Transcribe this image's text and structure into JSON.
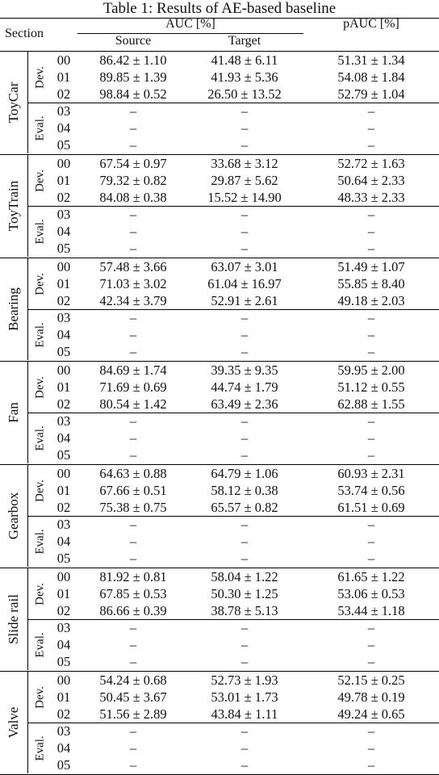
{
  "table": {
    "caption": "Table 1: Results of AE-based baseline",
    "header": {
      "section": "Section",
      "auc": "AUC [%]",
      "source": "Source",
      "target": "Target",
      "pauc": "pAUC [%]"
    },
    "subgroups": {
      "dev": "Dev.",
      "eval": "Eval."
    },
    "sections": [
      {
        "name": "ToyCar",
        "rows": [
          {
            "id": "00",
            "source": "86.42 ± 1.10",
            "target": "41.48 ± 6.11",
            "pauc": "51.31 ± 1.34"
          },
          {
            "id": "01",
            "source": "89.85 ± 1.39",
            "target": "41.93 ± 5.36",
            "pauc": "54.08 ± 1.84"
          },
          {
            "id": "02",
            "source": "98.84 ± 0.52",
            "target": "26.50 ± 13.52",
            "pauc": "52.79 ± 1.04"
          },
          {
            "id": "03",
            "source": "–",
            "target": "–",
            "pauc": "–"
          },
          {
            "id": "04",
            "source": "–",
            "target": "–",
            "pauc": "–"
          },
          {
            "id": "05",
            "source": "–",
            "target": "–",
            "pauc": "–"
          }
        ]
      },
      {
        "name": "ToyTrain",
        "rows": [
          {
            "id": "00",
            "source": "67.54 ± 0.97",
            "target": "33.68 ± 3.12",
            "pauc": "52.72 ± 1.63"
          },
          {
            "id": "01",
            "source": "79.32 ± 0.82",
            "target": "29.87 ± 5.62",
            "pauc": "50.64 ± 2.33"
          },
          {
            "id": "02",
            "source": "84.08 ± 0.38",
            "target": "15.52 ± 14.90",
            "pauc": "48.33 ± 2.33"
          },
          {
            "id": "03",
            "source": "–",
            "target": "–",
            "pauc": "–"
          },
          {
            "id": "04",
            "source": "–",
            "target": "–",
            "pauc": "–"
          },
          {
            "id": "05",
            "source": "–",
            "target": "–",
            "pauc": "–"
          }
        ]
      },
      {
        "name": "Bearing",
        "rows": [
          {
            "id": "00",
            "source": "57.48 ± 3.66",
            "target": "63.07 ± 3.01",
            "pauc": "51.49 ± 1.07"
          },
          {
            "id": "01",
            "source": "71.03 ± 3.02",
            "target": "61.04 ± 16.97",
            "pauc": "55.85 ± 8.40"
          },
          {
            "id": "02",
            "source": "42.34 ± 3.79",
            "target": "52.91 ± 2.61",
            "pauc": "49.18 ± 2.03"
          },
          {
            "id": "03",
            "source": "–",
            "target": "–",
            "pauc": "–"
          },
          {
            "id": "04",
            "source": "–",
            "target": "–",
            "pauc": "–"
          },
          {
            "id": "05",
            "source": "–",
            "target": "–",
            "pauc": "–"
          }
        ]
      },
      {
        "name": "Fan",
        "rows": [
          {
            "id": "00",
            "source": "84.69 ± 1.74",
            "target": "39.35 ± 9.35",
            "pauc": "59.95 ± 2.00"
          },
          {
            "id": "01",
            "source": "71.69 ± 0.69",
            "target": "44.74 ± 1.79",
            "pauc": "51.12 ± 0.55"
          },
          {
            "id": "02",
            "source": "80.54 ± 1.42",
            "target": "63.49 ± 2.36",
            "pauc": "62.88 ± 1.55"
          },
          {
            "id": "03",
            "source": "–",
            "target": "–",
            "pauc": "–"
          },
          {
            "id": "04",
            "source": "–",
            "target": "–",
            "pauc": "–"
          },
          {
            "id": "05",
            "source": "–",
            "target": "–",
            "pauc": "–"
          }
        ]
      },
      {
        "name": "Gearbox",
        "rows": [
          {
            "id": "00",
            "source": "64.63 ± 0.88",
            "target": "64.79 ± 1.06",
            "pauc": "60.93 ± 2.31"
          },
          {
            "id": "01",
            "source": "67.66 ± 0.51",
            "target": "58.12 ± 0.38",
            "pauc": "53.74 ± 0.56"
          },
          {
            "id": "02",
            "source": "75.38 ± 0.75",
            "target": "65.57 ± 0.82",
            "pauc": "61.51 ± 0.69"
          },
          {
            "id": "03",
            "source": "–",
            "target": "–",
            "pauc": "–"
          },
          {
            "id": "04",
            "source": "–",
            "target": "–",
            "pauc": "–"
          },
          {
            "id": "05",
            "source": "–",
            "target": "–",
            "pauc": "–"
          }
        ]
      },
      {
        "name": "Slide rail",
        "rows": [
          {
            "id": "00",
            "source": "81.92 ± 0.81",
            "target": "58.04 ± 1.22",
            "pauc": "61.65 ± 1.22"
          },
          {
            "id": "01",
            "source": "67.85 ± 0.53",
            "target": "50.30 ± 1.25",
            "pauc": "53.06 ± 0.53"
          },
          {
            "id": "02",
            "source": "86.66 ± 0.39",
            "target": "38.78 ± 5.13",
            "pauc": "53.44 ± 1.18"
          },
          {
            "id": "03",
            "source": "–",
            "target": "–",
            "pauc": "–"
          },
          {
            "id": "04",
            "source": "–",
            "target": "–",
            "pauc": "–"
          },
          {
            "id": "05",
            "source": "–",
            "target": "–",
            "pauc": "–"
          }
        ]
      },
      {
        "name": "Valve",
        "rows": [
          {
            "id": "00",
            "source": "54.24 ± 0.68",
            "target": "52.73 ± 1.93",
            "pauc": "52.15 ± 0.25"
          },
          {
            "id": "01",
            "source": "50.45 ± 3.67",
            "target": "53.01 ± 1.73",
            "pauc": "49.78 ± 0.19"
          },
          {
            "id": "02",
            "source": "51.56 ± 2.89",
            "target": "43.84 ± 1.11",
            "pauc": "49.24 ± 0.65"
          },
          {
            "id": "03",
            "source": "–",
            "target": "–",
            "pauc": "–"
          },
          {
            "id": "04",
            "source": "–",
            "target": "–",
            "pauc": "–"
          },
          {
            "id": "05",
            "source": "–",
            "target": "–",
            "pauc": "–"
          }
        ]
      }
    ]
  }
}
